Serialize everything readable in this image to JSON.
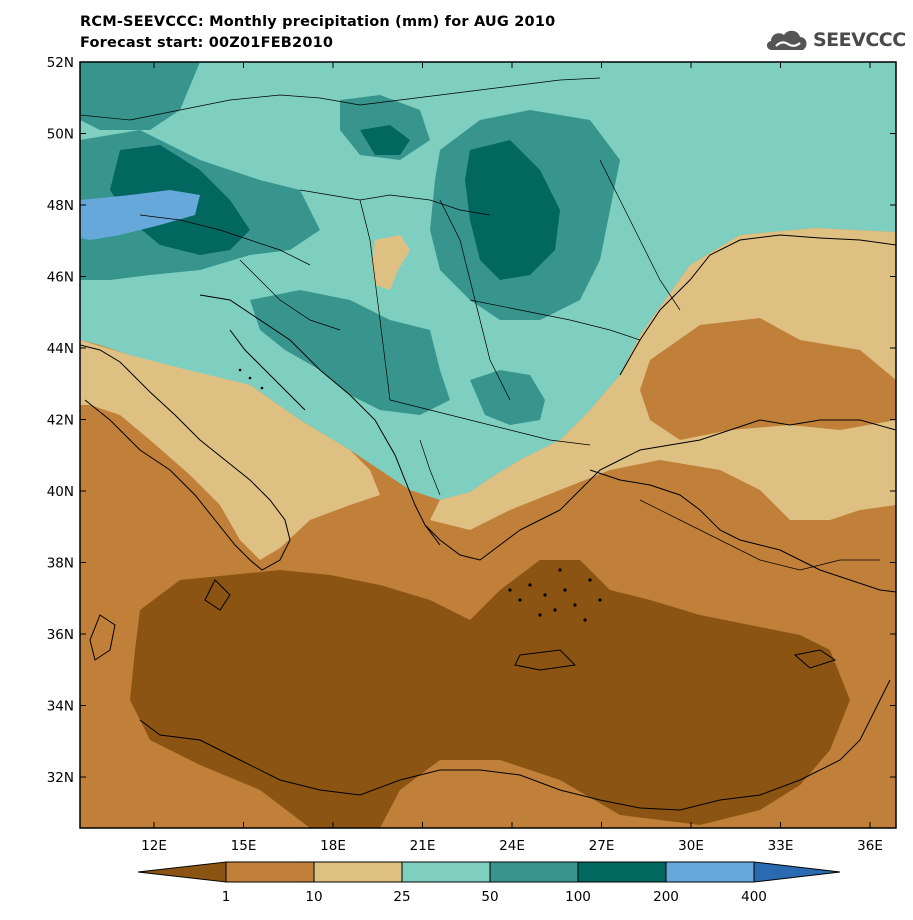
{
  "title_line1": "RCM-SEEVCCC: Monthly precipitation (mm) for AUG 2010",
  "title_line2": "Forecast start: 00Z01FEB2010",
  "logo_text": "SEEVCCC",
  "lat_labels": [
    "52N",
    "50N",
    "48N",
    "46N",
    "44N",
    "42N",
    "40N",
    "38N",
    "36N",
    "34N",
    "32N"
  ],
  "lon_labels": [
    "12E",
    "15E",
    "18E",
    "21E",
    "24E",
    "27E",
    "30E",
    "33E",
    "36E"
  ],
  "legend": {
    "labels": [
      "1",
      "10",
      "25",
      "50",
      "100",
      "200",
      "400"
    ],
    "colors": [
      "#8b5413",
      "#c0803a",
      "#dfc083",
      "#7fcfc0",
      "#37958e",
      "#02675e",
      "#65a8d9",
      "#2a6ab0"
    ]
  }
}
